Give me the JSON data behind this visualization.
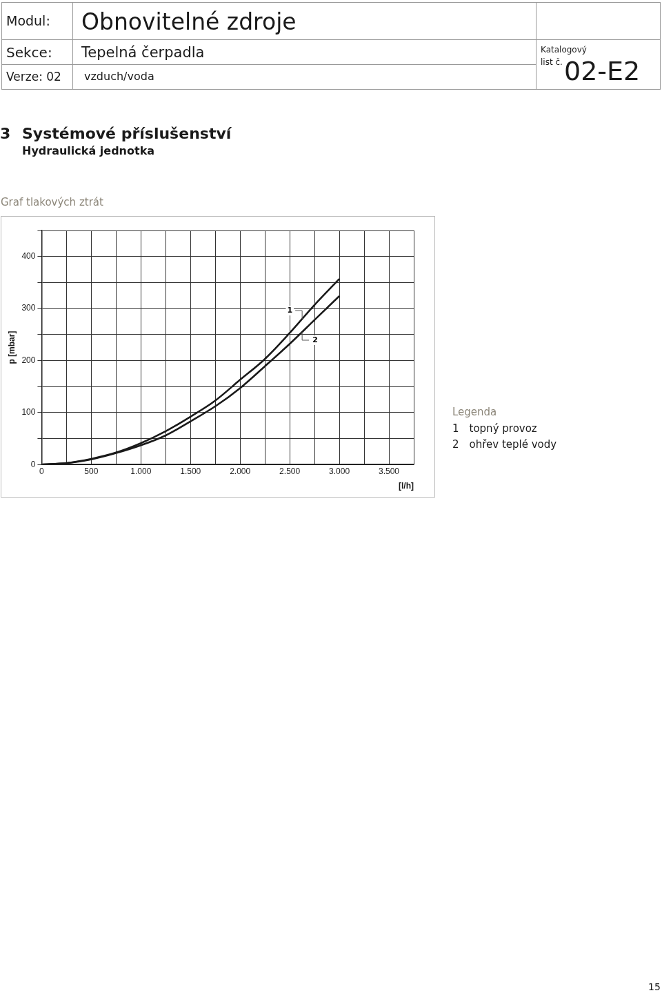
{
  "chart_data": {
    "type": "line",
    "title": "Systémové příslušenství",
    "subtitle": "Graf tlakových ztrát",
    "xlabel": "[l/h]",
    "ylabel": "p [mbar]",
    "grid": true,
    "marker": "none",
    "line_style": "solid",
    "x": [
      0,
      250,
      500,
      750,
      1000,
      1250,
      1500,
      1750,
      2000,
      2250,
      2500,
      2750,
      3000
    ],
    "series": [
      {
        "name": "1",
        "color": "#1a1a1a",
        "values": [
          0,
          3,
          11,
          23,
          41,
          64,
          92,
          123,
          163,
          203,
          253,
          307,
          357
        ]
      },
      {
        "name": "2",
        "color": "#1a1a1a",
        "values": [
          0,
          3,
          10,
          22,
          37,
          56,
          83,
          112,
          147,
          189,
          232,
          278,
          324
        ]
      }
    ],
    "xlim": [
      0,
      3750
    ],
    "ylim": [
      0,
      450
    ],
    "xticks": [
      0,
      {
        "value": 250,
        "label": null
      },
      500,
      {
        "value": 750,
        "label": null
      },
      {
        "value": 1000,
        "label": "1.000"
      },
      {
        "value": 1250,
        "label": null
      },
      {
        "value": 1500,
        "label": "1.500"
      },
      {
        "value": 1750,
        "label": null
      },
      {
        "value": 2000,
        "label": "2.000"
      },
      {
        "value": 2250,
        "label": null
      },
      {
        "value": 2500,
        "label": "2.500"
      },
      {
        "value": 2750,
        "label": null
      },
      {
        "value": 3000,
        "label": "3.000"
      },
      {
        "value": 3250,
        "label": null
      },
      {
        "value": 3500,
        "label": "3.500"
      },
      {
        "value": 3750,
        "label": null
      }
    ],
    "yticks": [
      0,
      {
        "value": 50,
        "label": null
      },
      100,
      {
        "value": 150,
        "label": null
      },
      200,
      {
        "value": 250,
        "label": null
      },
      300,
      {
        "value": 350,
        "label": null
      },
      400,
      {
        "value": 450,
        "label": null
      }
    ],
    "annotations": [
      "Modul:",
      "Obnovitelné zdroje",
      "Sekce:",
      "Tepelná čerpadla",
      "Verze: 02",
      "vzduch/voda",
      "Katalogový list č.",
      "02-E2",
      "3",
      "Hydraulická jednotka",
      "15",
      "Legenda",
      "1 topný provoz",
      "2 ohřev teplé vody"
    ]
  }
}
